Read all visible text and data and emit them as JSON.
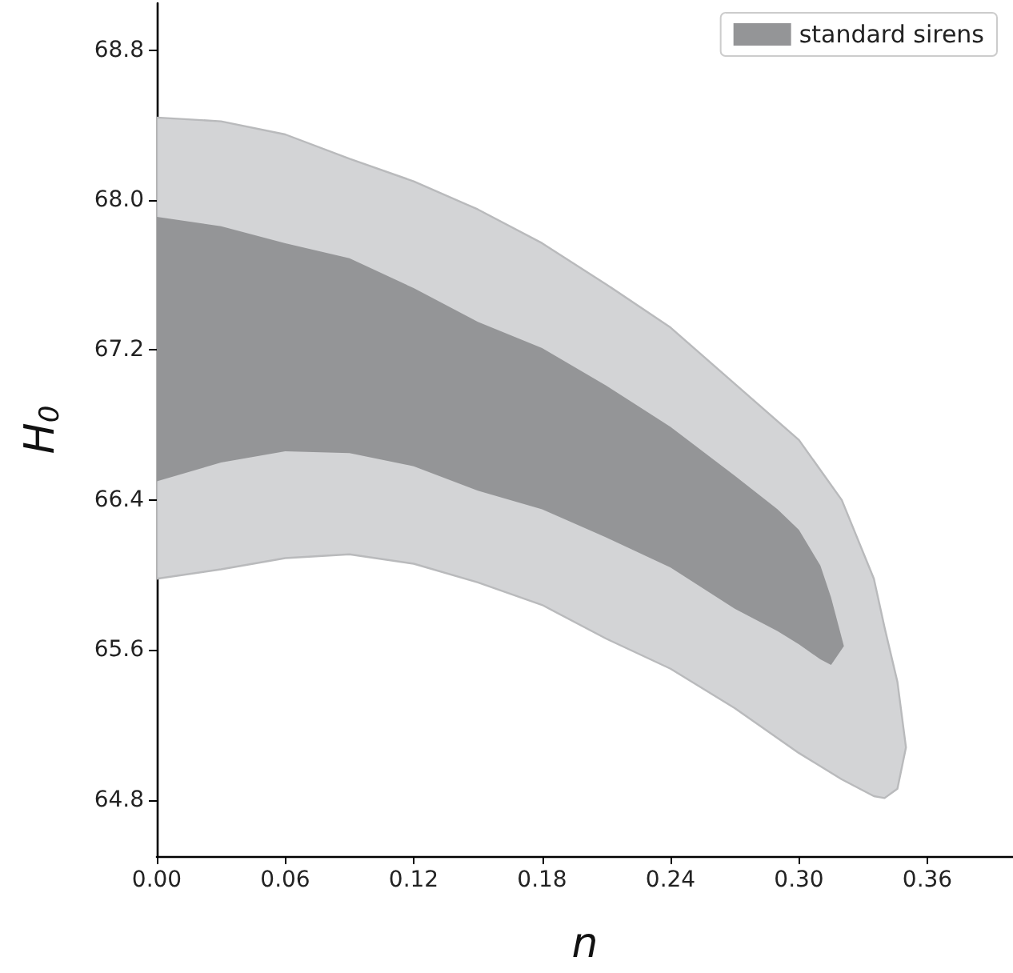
{
  "chart_data": {
    "type": "area",
    "xlabel": "n",
    "ylabel": "H$_{0}$",
    "xlim": [
      0,
      0.4
    ],
    "ylim": [
      64.5,
      69.05
    ],
    "xticks": [
      {
        "value": 0,
        "label": "0.00"
      },
      {
        "value": 0.06,
        "label": "0.06"
      },
      {
        "value": 0.12,
        "label": "0.12"
      },
      {
        "value": 0.18,
        "label": "0.18"
      },
      {
        "value": 0.24,
        "label": "0.24"
      },
      {
        "value": 0.3,
        "label": "0.30"
      },
      {
        "value": 0.36,
        "label": "0.36"
      }
    ],
    "yticks": [
      {
        "value": 64.8,
        "label": "64.8"
      },
      {
        "value": 65.6,
        "label": "65.6"
      },
      {
        "value": 66.4,
        "label": "66.4"
      },
      {
        "value": 67.2,
        "label": "67.2"
      },
      {
        "value": 68.0,
        "label": "68.0"
      },
      {
        "value": 68.8,
        "label": "68.8"
      }
    ],
    "grid": false,
    "legend": "top right",
    "series": [
      {
        "color": "#d3d4d6",
        "x": [
          0,
          0.03,
          0.06,
          0.09,
          0.12,
          0.15,
          0.18,
          0.21,
          0.24,
          0.27,
          0.3,
          0.32,
          0.335,
          0.34,
          0.346,
          0.35
        ],
        "values": [
          null,
          null,
          null,
          null,
          null,
          null,
          null,
          null,
          null,
          null,
          null,
          null,
          null,
          null,
          null,
          null
        ],
        "upper": [
          68.44,
          68.42,
          68.35,
          68.22,
          68.1,
          67.95,
          67.77,
          67.55,
          67.32,
          67.02,
          66.72,
          66.4,
          65.98,
          65.72,
          65.43,
          65.08
        ],
        "lower": [
          65.98,
          66.03,
          66.09,
          66.11,
          66.06,
          65.96,
          65.84,
          65.66,
          65.5,
          65.29,
          65.05,
          64.91,
          64.82,
          64.81,
          64.86,
          65.08
        ]
      },
      {
        "name": "standard sirens",
        "color": "#949597",
        "x": [
          0,
          0.03,
          0.06,
          0.09,
          0.12,
          0.15,
          0.18,
          0.21,
          0.24,
          0.27,
          0.29,
          0.3,
          0.31,
          0.315,
          0.321
        ],
        "values": [
          null,
          null,
          null,
          null,
          null,
          null,
          null,
          null,
          null,
          null,
          null,
          null,
          null,
          null,
          null
        ],
        "upper": [
          67.91,
          67.86,
          67.77,
          67.69,
          67.53,
          67.35,
          67.21,
          67.01,
          66.79,
          66.53,
          66.35,
          66.24,
          66.05,
          65.88,
          65.62
        ],
        "lower": [
          66.5,
          66.6,
          66.66,
          66.65,
          66.58,
          66.45,
          66.35,
          66.2,
          66.04,
          65.82,
          65.7,
          65.63,
          65.55,
          65.52,
          65.62
        ]
      }
    ]
  }
}
